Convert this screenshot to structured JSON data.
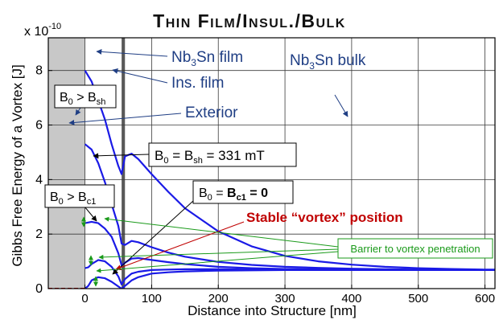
{
  "chart_data": {
    "type": "line",
    "title": "Thin Film/Insul./Bulk",
    "xlabel": "Distance into Structure [nm]",
    "ylabel": "Gibbs Free Energy of a Vortex [J]",
    "y_multiplier": "x 10",
    "y_exponent": "-10",
    "xlim": [
      -55,
      615
    ],
    "ylim": [
      0,
      9.2
    ],
    "xticks": [
      0,
      100,
      200,
      300,
      400,
      500,
      600
    ],
    "yticks": [
      0,
      2,
      4,
      6,
      8
    ],
    "grid": true,
    "film_region": [
      -55,
      0
    ],
    "insulator_region": [
      55,
      60
    ],
    "series": [
      {
        "x": [
          0,
          10,
          20,
          30,
          40,
          50,
          55,
          60,
          70,
          80,
          100,
          125,
          150,
          200,
          250,
          300,
          350,
          400,
          450,
          500,
          550,
          600,
          615
        ],
        "values": [
          8.0,
          7.6,
          6.9,
          6.2,
          5.3,
          4.5,
          4.2,
          4.85,
          4.95,
          4.75,
          4.2,
          3.55,
          2.95,
          2.1,
          1.55,
          1.2,
          1.0,
          0.88,
          0.8,
          0.75,
          0.72,
          0.7,
          0.7
        ]
      },
      {
        "x": [
          0,
          10,
          20,
          30,
          40,
          50,
          55,
          60,
          70,
          80,
          100,
          125,
          150,
          200,
          250,
          300,
          350,
          400,
          450,
          500,
          550,
          600,
          615
        ],
        "values": [
          5.3,
          5.1,
          4.6,
          3.9,
          3.1,
          2.3,
          1.65,
          1.6,
          1.75,
          1.7,
          1.52,
          1.32,
          1.17,
          0.98,
          0.87,
          0.8,
          0.76,
          0.73,
          0.71,
          0.7,
          0.7,
          0.69,
          0.69
        ]
      },
      {
        "x": [
          0,
          10,
          20,
          30,
          40,
          50,
          55,
          60,
          70,
          80,
          100,
          125,
          150,
          200,
          250,
          300,
          350,
          400,
          450,
          500,
          550,
          600,
          615
        ],
        "values": [
          2.4,
          2.45,
          2.4,
          2.2,
          1.9,
          1.3,
          0.85,
          0.95,
          1.1,
          1.12,
          1.05,
          0.97,
          0.9,
          0.8,
          0.75,
          0.72,
          0.71,
          0.7,
          0.69,
          0.69,
          0.69,
          0.69,
          0.69
        ]
      },
      {
        "x": [
          0,
          5,
          10,
          20,
          30,
          40,
          50,
          55,
          60,
          70,
          80,
          100,
          125,
          150,
          200,
          250,
          300,
          350,
          400,
          450,
          500,
          550,
          600,
          615
        ],
        "values": [
          0.75,
          0.78,
          0.9,
          1.05,
          1.0,
          0.8,
          0.45,
          0.15,
          0.35,
          0.55,
          0.62,
          0.68,
          0.7,
          0.71,
          0.71,
          0.7,
          0.7,
          0.69,
          0.69,
          0.69,
          0.69,
          0.69,
          0.69,
          0.69
        ]
      },
      {
        "x": [
          0,
          5,
          10,
          20,
          30,
          40,
          50,
          55,
          60,
          70,
          80,
          100,
          125,
          150,
          200,
          250,
          300,
          350,
          400,
          450,
          500,
          550,
          600,
          615
        ],
        "values": [
          0.0,
          0.1,
          0.3,
          0.42,
          0.38,
          0.25,
          0.08,
          0.0,
          0.1,
          0.3,
          0.42,
          0.55,
          0.6,
          0.63,
          0.66,
          0.67,
          0.68,
          0.68,
          0.68,
          0.68,
          0.68,
          0.68,
          0.68,
          0.68
        ]
      }
    ],
    "annotations": {
      "nb3sn_film": [
        "Nb",
        "3",
        "Sn film"
      ],
      "ins_film": "Ins. film",
      "nb3sn_bulk": [
        "Nb",
        "3",
        "Sn bulk"
      ],
      "exterior": "Exterior",
      "b0_gt_bsh": [
        "B",
        "0",
        " > B",
        "sh"
      ],
      "b0_eq_bsh": [
        "B",
        "0",
        " = B",
        "sh",
        " = 331 mT"
      ],
      "b0_gt_bc1": [
        "B",
        "0",
        " > B",
        "c1"
      ],
      "b0_eq_bc1": [
        "B",
        "0",
        " = ",
        "B",
        "c1",
        " = 0"
      ],
      "stable_vortex": "Stable “vortex” position",
      "barrier": "Barrier to vortex penetration"
    },
    "colors": {
      "curve": "#1a1ae6",
      "text": "#1f3e84",
      "stable": "#c00000",
      "barrier": "#1a9a1a",
      "film": "#c8c8c8",
      "insulator": "#595959"
    }
  }
}
